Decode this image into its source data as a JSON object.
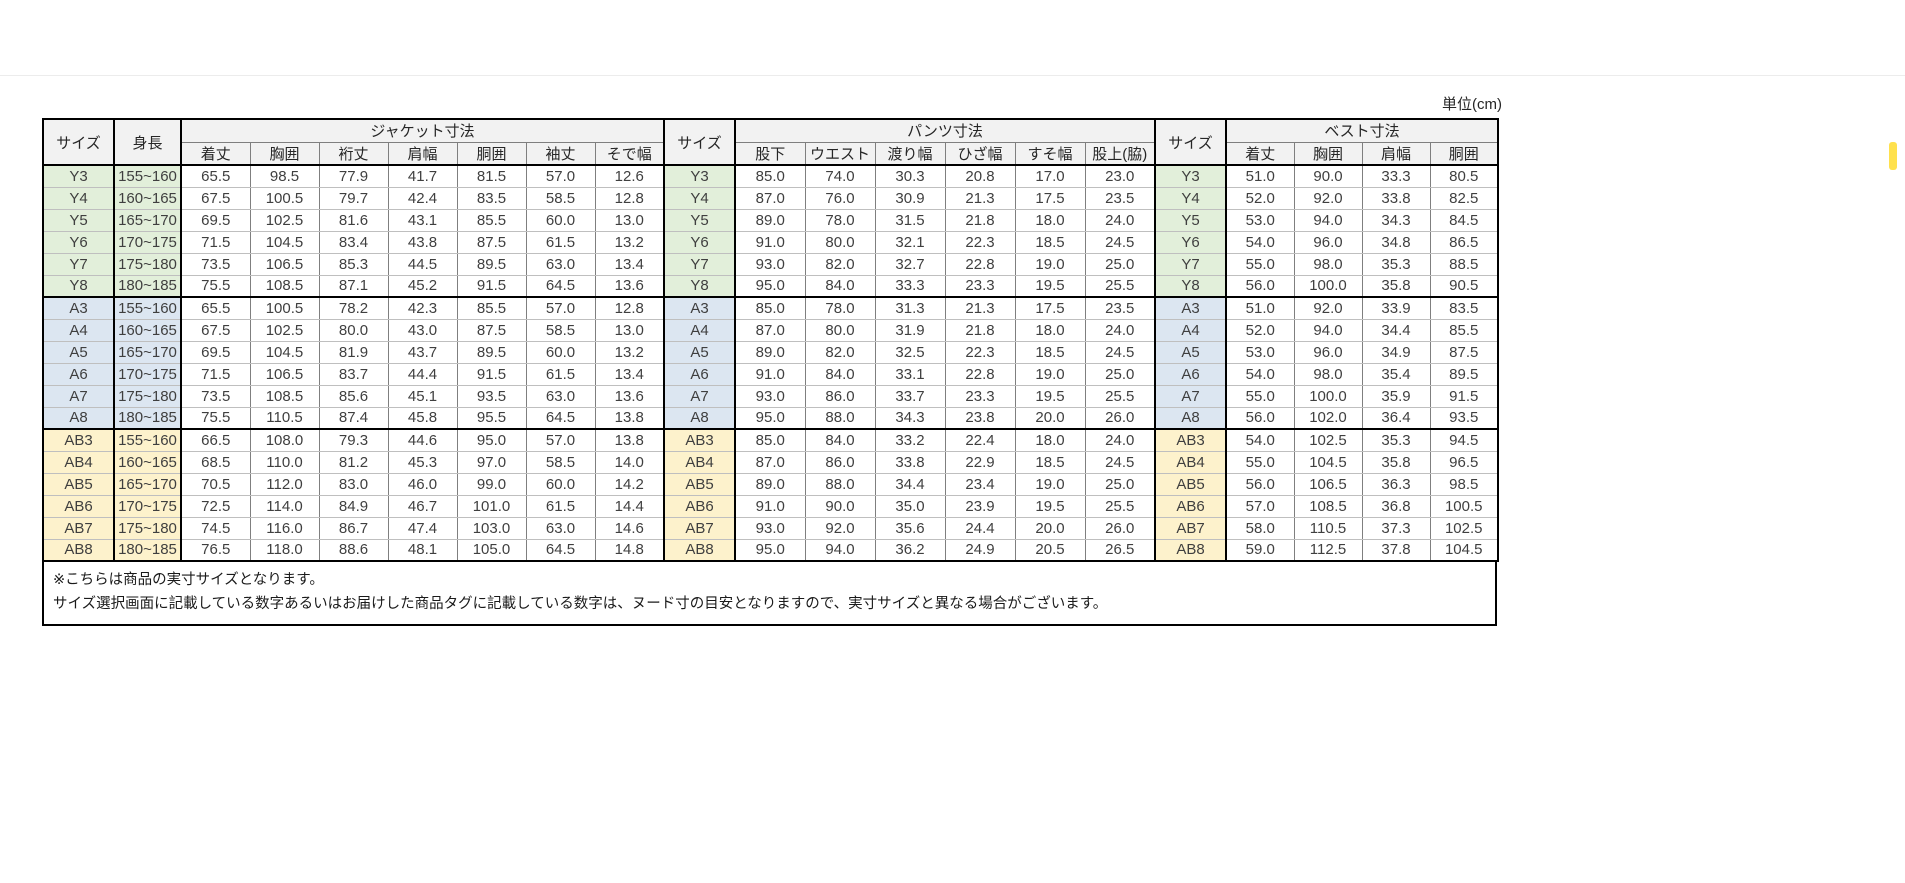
{
  "page": {
    "unit_label": "単位(cm)"
  },
  "table": {
    "size_header": "サイズ",
    "height_header": "身長",
    "sections": [
      {
        "title": "ジャケット寸法",
        "columns": [
          "着丈",
          "胸囲",
          "裄丈",
          "肩幅",
          "胴囲",
          "袖丈",
          "そで幅"
        ]
      },
      {
        "title": "パンツ寸法",
        "columns": [
          "股下",
          "ウエスト",
          "渡り幅",
          "ひざ幅",
          "すそ幅",
          "股上(脇)"
        ]
      },
      {
        "title": "ベスト寸法",
        "columns": [
          "着丈",
          "胸囲",
          "肩幅",
          "胴囲"
        ]
      }
    ],
    "groups": [
      {
        "name": "Y",
        "tint": "#e2efda",
        "rows": [
          {
            "size": "Y3",
            "height": "155~160",
            "jacket": [
              "65.5",
              "98.5",
              "77.9",
              "41.7",
              "81.5",
              "57.0",
              "12.6"
            ],
            "pants": [
              "85.0",
              "74.0",
              "30.3",
              "20.8",
              "17.0",
              "23.0"
            ],
            "vest": [
              "51.0",
              "90.0",
              "33.3",
              "80.5"
            ]
          },
          {
            "size": "Y4",
            "height": "160~165",
            "jacket": [
              "67.5",
              "100.5",
              "79.7",
              "42.4",
              "83.5",
              "58.5",
              "12.8"
            ],
            "pants": [
              "87.0",
              "76.0",
              "30.9",
              "21.3",
              "17.5",
              "23.5"
            ],
            "vest": [
              "52.0",
              "92.0",
              "33.8",
              "82.5"
            ]
          },
          {
            "size": "Y5",
            "height": "165~170",
            "jacket": [
              "69.5",
              "102.5",
              "81.6",
              "43.1",
              "85.5",
              "60.0",
              "13.0"
            ],
            "pants": [
              "89.0",
              "78.0",
              "31.5",
              "21.8",
              "18.0",
              "24.0"
            ],
            "vest": [
              "53.0",
              "94.0",
              "34.3",
              "84.5"
            ]
          },
          {
            "size": "Y6",
            "height": "170~175",
            "jacket": [
              "71.5",
              "104.5",
              "83.4",
              "43.8",
              "87.5",
              "61.5",
              "13.2"
            ],
            "pants": [
              "91.0",
              "80.0",
              "32.1",
              "22.3",
              "18.5",
              "24.5"
            ],
            "vest": [
              "54.0",
              "96.0",
              "34.8",
              "86.5"
            ]
          },
          {
            "size": "Y7",
            "height": "175~180",
            "jacket": [
              "73.5",
              "106.5",
              "85.3",
              "44.5",
              "89.5",
              "63.0",
              "13.4"
            ],
            "pants": [
              "93.0",
              "82.0",
              "32.7",
              "22.8",
              "19.0",
              "25.0"
            ],
            "vest": [
              "55.0",
              "98.0",
              "35.3",
              "88.5"
            ]
          },
          {
            "size": "Y8",
            "height": "180~185",
            "jacket": [
              "75.5",
              "108.5",
              "87.1",
              "45.2",
              "91.5",
              "64.5",
              "13.6"
            ],
            "pants": [
              "95.0",
              "84.0",
              "33.3",
              "23.3",
              "19.5",
              "25.5"
            ],
            "vest": [
              "56.0",
              "100.0",
              "35.8",
              "90.5"
            ]
          }
        ]
      },
      {
        "name": "A",
        "tint": "#dce6f1",
        "rows": [
          {
            "size": "A3",
            "height": "155~160",
            "jacket": [
              "65.5",
              "100.5",
              "78.2",
              "42.3",
              "85.5",
              "57.0",
              "12.8"
            ],
            "pants": [
              "85.0",
              "78.0",
              "31.3",
              "21.3",
              "17.5",
              "23.5"
            ],
            "vest": [
              "51.0",
              "92.0",
              "33.9",
              "83.5"
            ]
          },
          {
            "size": "A4",
            "height": "160~165",
            "jacket": [
              "67.5",
              "102.5",
              "80.0",
              "43.0",
              "87.5",
              "58.5",
              "13.0"
            ],
            "pants": [
              "87.0",
              "80.0",
              "31.9",
              "21.8",
              "18.0",
              "24.0"
            ],
            "vest": [
              "52.0",
              "94.0",
              "34.4",
              "85.5"
            ]
          },
          {
            "size": "A5",
            "height": "165~170",
            "jacket": [
              "69.5",
              "104.5",
              "81.9",
              "43.7",
              "89.5",
              "60.0",
              "13.2"
            ],
            "pants": [
              "89.0",
              "82.0",
              "32.5",
              "22.3",
              "18.5",
              "24.5"
            ],
            "vest": [
              "53.0",
              "96.0",
              "34.9",
              "87.5"
            ]
          },
          {
            "size": "A6",
            "height": "170~175",
            "jacket": [
              "71.5",
              "106.5",
              "83.7",
              "44.4",
              "91.5",
              "61.5",
              "13.4"
            ],
            "pants": [
              "91.0",
              "84.0",
              "33.1",
              "22.8",
              "19.0",
              "25.0"
            ],
            "vest": [
              "54.0",
              "98.0",
              "35.4",
              "89.5"
            ]
          },
          {
            "size": "A7",
            "height": "175~180",
            "jacket": [
              "73.5",
              "108.5",
              "85.6",
              "45.1",
              "93.5",
              "63.0",
              "13.6"
            ],
            "pants": [
              "93.0",
              "86.0",
              "33.7",
              "23.3",
              "19.5",
              "25.5"
            ],
            "vest": [
              "55.0",
              "100.0",
              "35.9",
              "91.5"
            ]
          },
          {
            "size": "A8",
            "height": "180~185",
            "jacket": [
              "75.5",
              "110.5",
              "87.4",
              "45.8",
              "95.5",
              "64.5",
              "13.8"
            ],
            "pants": [
              "95.0",
              "88.0",
              "34.3",
              "23.8",
              "20.0",
              "26.0"
            ],
            "vest": [
              "56.0",
              "102.0",
              "36.4",
              "93.5"
            ]
          }
        ]
      },
      {
        "name": "AB",
        "tint": "#fdf2cc",
        "rows": [
          {
            "size": "AB3",
            "height": "155~160",
            "jacket": [
              "66.5",
              "108.0",
              "79.3",
              "44.6",
              "95.0",
              "57.0",
              "13.8"
            ],
            "pants": [
              "85.0",
              "84.0",
              "33.2",
              "22.4",
              "18.0",
              "24.0"
            ],
            "vest": [
              "54.0",
              "102.5",
              "35.3",
              "94.5"
            ]
          },
          {
            "size": "AB4",
            "height": "160~165",
            "jacket": [
              "68.5",
              "110.0",
              "81.2",
              "45.3",
              "97.0",
              "58.5",
              "14.0"
            ],
            "pants": [
              "87.0",
              "86.0",
              "33.8",
              "22.9",
              "18.5",
              "24.5"
            ],
            "vest": [
              "55.0",
              "104.5",
              "35.8",
              "96.5"
            ]
          },
          {
            "size": "AB5",
            "height": "165~170",
            "jacket": [
              "70.5",
              "112.0",
              "83.0",
              "46.0",
              "99.0",
              "60.0",
              "14.2"
            ],
            "pants": [
              "89.0",
              "88.0",
              "34.4",
              "23.4",
              "19.0",
              "25.0"
            ],
            "vest": [
              "56.0",
              "106.5",
              "36.3",
              "98.5"
            ]
          },
          {
            "size": "AB6",
            "height": "170~175",
            "jacket": [
              "72.5",
              "114.0",
              "84.9",
              "46.7",
              "101.0",
              "61.5",
              "14.4"
            ],
            "pants": [
              "91.0",
              "90.0",
              "35.0",
              "23.9",
              "19.5",
              "25.5"
            ],
            "vest": [
              "57.0",
              "108.5",
              "36.8",
              "100.5"
            ]
          },
          {
            "size": "AB7",
            "height": "175~180",
            "jacket": [
              "74.5",
              "116.0",
              "86.7",
              "47.4",
              "103.0",
              "63.0",
              "14.6"
            ],
            "pants": [
              "93.0",
              "92.0",
              "35.6",
              "24.4",
              "20.0",
              "26.0"
            ],
            "vest": [
              "58.0",
              "110.5",
              "37.3",
              "102.5"
            ]
          },
          {
            "size": "AB8",
            "height": "180~185",
            "jacket": [
              "76.5",
              "118.0",
              "88.6",
              "48.1",
              "105.0",
              "64.5",
              "14.8"
            ],
            "pants": [
              "95.0",
              "94.0",
              "36.2",
              "24.9",
              "20.5",
              "26.5"
            ],
            "vest": [
              "59.0",
              "112.5",
              "37.8",
              "104.5"
            ]
          }
        ]
      }
    ]
  },
  "footnotes": [
    "※こちらは商品の実寸サイズとなります。",
    "サイズ選択画面に記載している数字あるいはお届けした商品タグに記載している数字は、ヌード寸の目安となりますので、実寸サイズと異なる場合がございます。"
  ]
}
